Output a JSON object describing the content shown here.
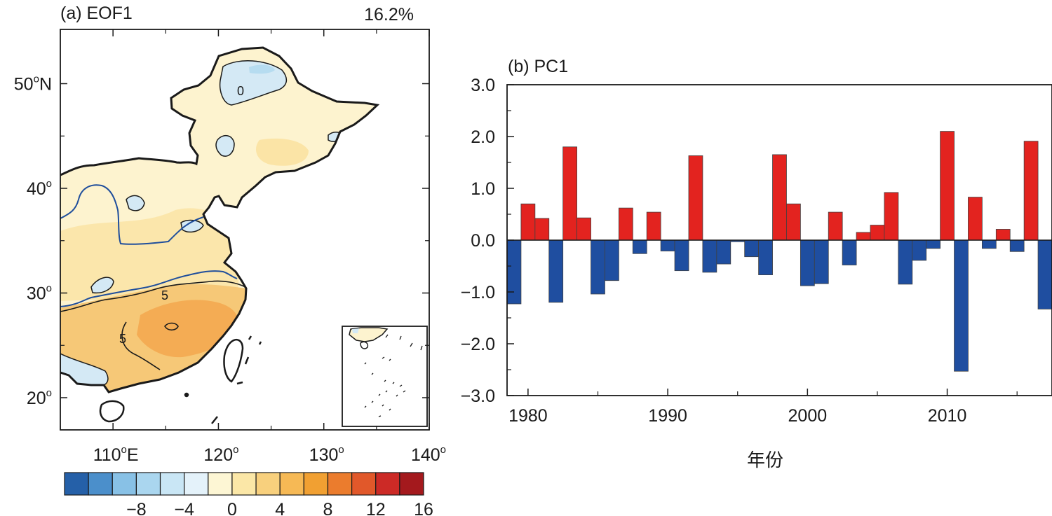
{
  "colors": {
    "land_base": "#fdf3cf",
    "land_warm1": "#fbe4a6",
    "land_warm2": "#f6c877",
    "land_warm3": "#f3ab52",
    "land_cool": "#d4e9f5",
    "land_cool2": "#b6dcf0",
    "coast": "#1a1a1a",
    "river": "#1f4e9c",
    "bar_positive": "#e3231f",
    "bar_negative": "#1f4ea0",
    "bar_stroke": "#404040"
  },
  "map": {
    "title": "(a) EOF1",
    "variance": "16.2%",
    "lat_ticks": [
      {
        "value": 50,
        "label": "50",
        "deg": "o",
        "suffix": "N"
      },
      {
        "value": 40,
        "label": "40",
        "deg": "o",
        "suffix": ""
      },
      {
        "value": 30,
        "label": "30",
        "deg": "o",
        "suffix": ""
      },
      {
        "value": 20,
        "label": "20",
        "deg": "o",
        "suffix": ""
      }
    ],
    "lon_ticks": [
      {
        "value": 110,
        "label": "110",
        "deg": "o",
        "suffix": "E"
      },
      {
        "value": 120,
        "label": "120",
        "deg": "o",
        "suffix": ""
      },
      {
        "value": 130,
        "label": "130",
        "deg": "o",
        "suffix": ""
      },
      {
        "value": 140,
        "label": "140",
        "deg": "o",
        "suffix": ""
      }
    ],
    "contour_labels": [
      "0",
      "5",
      "5"
    ]
  },
  "colorbar": {
    "colors": [
      "#2560a8",
      "#4b8fcb",
      "#88c1e6",
      "#aad6ef",
      "#c9e6f5",
      "#e4f2fa",
      "#fdf6d4",
      "#fbe7a7",
      "#f8d07d",
      "#f6b955",
      "#f1a032",
      "#eb7c2d",
      "#e1582a",
      "#cc2a26",
      "#a4191d"
    ],
    "labels": [
      {
        "text": "−8",
        "boundary": 2
      },
      {
        "text": "−4",
        "boundary": 4
      },
      {
        "text": "0",
        "boundary": 6
      },
      {
        "text": "4",
        "boundary": 8
      },
      {
        "text": "8",
        "boundary": 10
      },
      {
        "text": "12",
        "boundary": 12
      },
      {
        "text": "16",
        "boundary": 14
      }
    ]
  },
  "chart_data": {
    "type": "bar",
    "title": "(b) PC1",
    "xlabel": "年份",
    "ylabel": "",
    "x": [
      1979,
      1980,
      1981,
      1982,
      1983,
      1984,
      1985,
      1986,
      1987,
      1988,
      1989,
      1990,
      1991,
      1992,
      1993,
      1994,
      1995,
      1996,
      1997,
      1998,
      1999,
      2000,
      2001,
      2002,
      2003,
      2004,
      2005,
      2006,
      2007,
      2008,
      2009,
      2010,
      2011,
      2012,
      2013,
      2014,
      2015,
      2016,
      2017
    ],
    "values": [
      -1.23,
      0.7,
      0.42,
      -1.2,
      1.8,
      0.43,
      -1.04,
      -0.78,
      0.62,
      -0.26,
      0.54,
      -0.21,
      -0.59,
      1.63,
      -0.62,
      -0.46,
      -0.03,
      -0.32,
      -0.67,
      1.65,
      0.7,
      -0.88,
      -0.84,
      0.54,
      -0.48,
      0.15,
      0.29,
      0.92,
      -0.85,
      -0.39,
      -0.16,
      2.1,
      -2.53,
      0.83,
      -0.16,
      0.21,
      -0.22,
      1.91,
      -1.33
    ],
    "ylim": [
      -3.0,
      3.0
    ],
    "xlim": [
      1978.5,
      2017.5
    ],
    "yticks": [
      "3.0",
      "2.0",
      "1.0",
      "0.0",
      "−1.0",
      "−2.0",
      "−3.0"
    ],
    "xticks": [
      "1980",
      "1990",
      "2000",
      "2010"
    ],
    "grid": false,
    "legend": "none"
  }
}
